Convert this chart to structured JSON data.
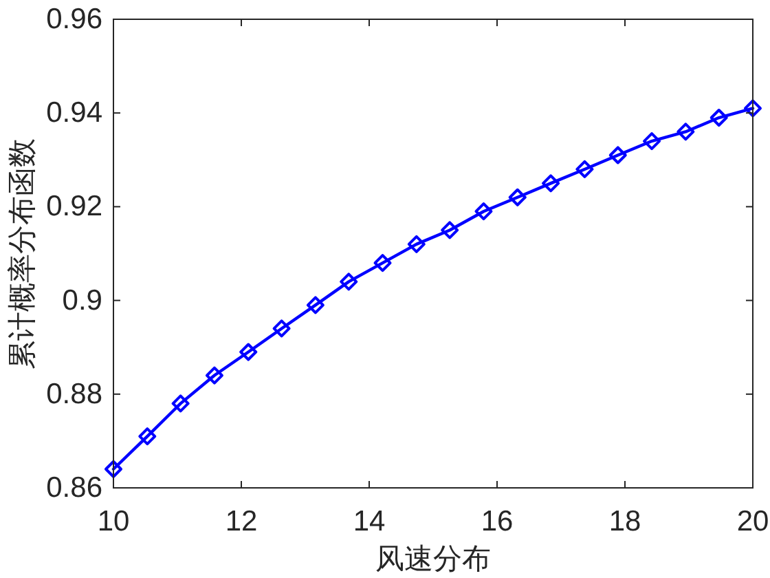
{
  "chart_data": {
    "type": "line",
    "xlabel": "风速分布",
    "ylabel": "累计概率分布函数",
    "x": [
      10,
      10.53,
      11.05,
      11.58,
      12.11,
      12.63,
      13.16,
      13.68,
      14.21,
      14.74,
      15.26,
      15.79,
      16.32,
      16.84,
      17.37,
      17.89,
      18.42,
      18.95,
      19.47,
      20
    ],
    "series": [
      {
        "color": "#0000ff",
        "values": [
          0.864,
          0.871,
          0.878,
          0.884,
          0.889,
          0.894,
          0.899,
          0.904,
          0.908,
          0.912,
          0.915,
          0.919,
          0.922,
          0.925,
          0.928,
          0.931,
          0.934,
          0.936,
          0.939,
          0.941
        ]
      }
    ],
    "xlim": [
      10,
      20
    ],
    "ylim": [
      0.86,
      0.96
    ],
    "xticks": [
      10,
      12,
      14,
      16,
      18,
      20
    ],
    "yticks": [
      0.86,
      0.88,
      0.9,
      0.92,
      0.94,
      0.96
    ],
    "marker": "diamond",
    "line_style": "solid"
  }
}
